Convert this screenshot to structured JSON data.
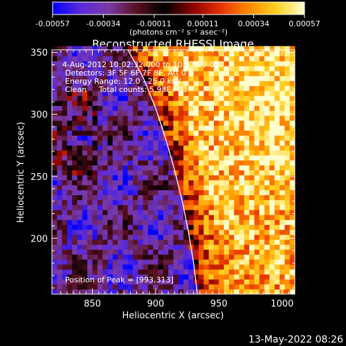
{
  "chart_data": {
    "type": "heatmap",
    "title": "Reconstructed RHESSI Image",
    "xlabel": "Heliocentric X (arcsec)",
    "ylabel": "Heliocentric Y (arcsec)",
    "xlim": [
      818,
      1010
    ],
    "ylim": [
      155,
      352
    ],
    "xticks": [
      850,
      900,
      950,
      1000
    ],
    "yticks": [
      200,
      250,
      300,
      350
    ],
    "colorbar": {
      "range": [
        -0.00057,
        0.00057
      ],
      "tick_values": [
        -0.00057,
        -0.00034,
        -0.00011,
        0.00011,
        0.00034,
        0.00057
      ],
      "tick_labels": [
        "-0.00057",
        "-0.00034",
        "-0.00011",
        "0.00011",
        "0.00034",
        "0.00057"
      ],
      "unit_label": "(photons cm⁻² s⁻¹ asec⁻²)",
      "colors": [
        "#0000ff",
        "#5a2ad8",
        "#7a3aa8",
        "#5a1020",
        "#000000",
        "#8b0000",
        "#e63000",
        "#ff8800",
        "#ffd020",
        "#ffffd0"
      ]
    },
    "annotations": [
      "4-Aug-2012 10:02:32.000 to 10:07:20.000",
      "Detectors: 3F 5F 6F 7F 8F, Att 0",
      "Energy Range: 12.0 - 25.0 keV",
      "Clean     Total counts: 5.98E+03"
    ],
    "peak_label": "Position of Peak = [993,313]",
    "peak": [
      993,
      313
    ],
    "limb_curve": [
      [
        878,
        352
      ],
      [
        890,
        330
      ],
      [
        900,
        305
      ],
      [
        908,
        280
      ],
      [
        915,
        255
      ],
      [
        921,
        230
      ],
      [
        926,
        205
      ],
      [
        930,
        180
      ],
      [
        933,
        155
      ]
    ]
  },
  "timestamp": "13-May-2022 08:26"
}
